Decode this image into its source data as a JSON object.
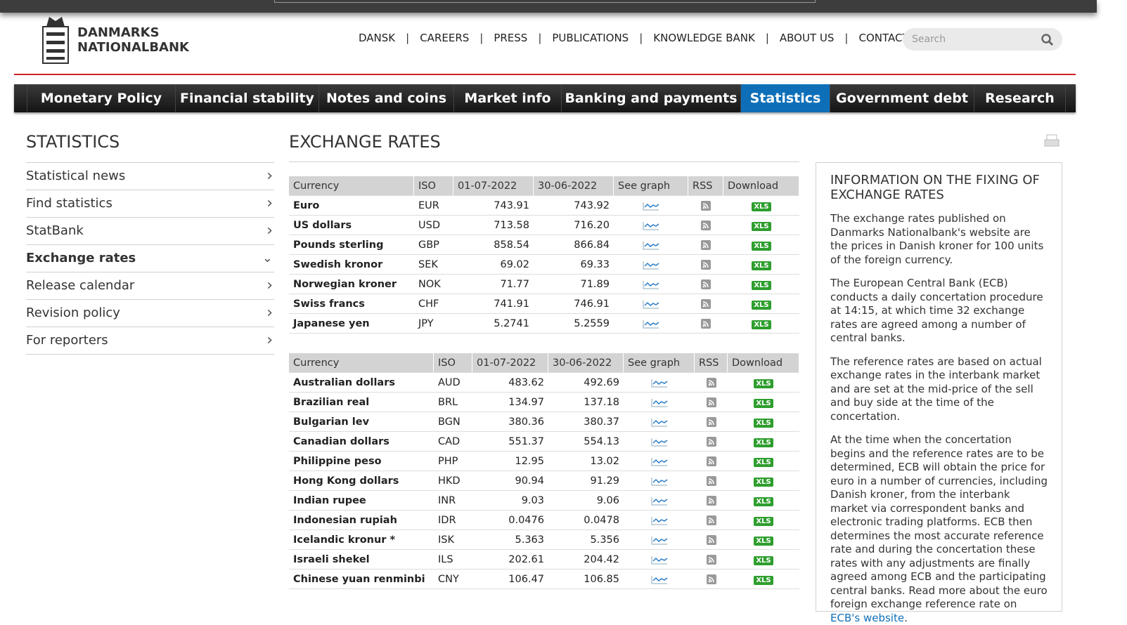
{
  "header": {
    "logo": [
      "DANMARKS",
      "NATIONALBANK"
    ],
    "top_links": [
      "DANSK",
      "CAREERS",
      "PRESS",
      "PUBLICATIONS",
      "KNOWLEDGE BANK",
      "ABOUT US",
      "CONTACT"
    ],
    "search_placeholder": "Search"
  },
  "main_nav": {
    "items": [
      "Monetary Policy",
      "Financial stability",
      "Notes and coins",
      "Market info",
      "Banking and payments",
      "Statistics",
      "Government debt",
      "Research"
    ],
    "active": 5
  },
  "sidebar": {
    "title": "STATISTICS",
    "items": [
      "Statistical news",
      "Find statistics",
      "StatBank",
      "Exchange rates",
      "Release calendar",
      "Revision policy",
      "For reporters"
    ],
    "active": 3
  },
  "page_title": "EXCHANGE RATES",
  "download_label": "XLS",
  "tables": [
    {
      "headers": [
        "Currency",
        "ISO",
        "01-07-2022",
        "30-06-2022",
        "See graph",
        "RSS",
        "Download"
      ],
      "rows": [
        [
          "Euro",
          "EUR",
          "743.91",
          "743.92"
        ],
        [
          "US dollars",
          "USD",
          "713.58",
          "716.20"
        ],
        [
          "Pounds sterling",
          "GBP",
          "858.54",
          "866.84"
        ],
        [
          "Swedish kronor",
          "SEK",
          "69.02",
          "69.33"
        ],
        [
          "Norwegian kroner",
          "NOK",
          "71.77",
          "71.89"
        ],
        [
          "Swiss francs",
          "CHF",
          "741.91",
          "746.91"
        ],
        [
          "Japanese yen",
          "JPY",
          "5.2741",
          "5.2559"
        ]
      ]
    },
    {
      "headers": [
        "Currency",
        "ISO",
        "01-07-2022",
        "30-06-2022",
        "See graph",
        "RSS",
        "Download"
      ],
      "rows": [
        [
          "Australian dollars",
          "AUD",
          "483.62",
          "492.69"
        ],
        [
          "Brazilian real",
          "BRL",
          "134.97",
          "137.18"
        ],
        [
          "Bulgarian lev",
          "BGN",
          "380.36",
          "380.37"
        ],
        [
          "Canadian dollars",
          "CAD",
          "551.37",
          "554.13"
        ],
        [
          "Philippine peso",
          "PHP",
          "12.95",
          "13.02"
        ],
        [
          "Hong Kong dollars",
          "HKD",
          "90.94",
          "91.29"
        ],
        [
          "Indian rupee",
          "INR",
          "9.03",
          "9.06"
        ],
        [
          "Indonesian rupiah",
          "IDR",
          "0.0476",
          "0.0478"
        ],
        [
          "Icelandic kronur *",
          "ISK",
          "5.363",
          "5.356"
        ],
        [
          "Israeli shekel",
          "ILS",
          "202.61",
          "204.42"
        ],
        [
          "Chinese yuan renminbi",
          "CNY",
          "106.47",
          "106.85"
        ]
      ]
    }
  ],
  "info": {
    "title": "INFORMATION ON THE FIXING OF EXCHANGE RATES",
    "paragraphs": [
      "The exchange rates published on Danmarks Nationalbank's website are the prices in Danish kroner for 100 units of the foreign currency.",
      "The European Central Bank (ECB) conducts a daily concertation procedure at 14:15, at which time 32 exchange rates are agreed among a number of central banks.",
      "The reference rates are based on actual exchange rates in the interbank market and are set at the mid-price of the sell and buy side at the time of the concertation."
    ],
    "last_paragraph": {
      "text": "At the time when the concertation begins and the reference rates are to be determined, ECB will obtain the price for euro in a number of currencies, including Danish kroner, from the interbank market via correspondent banks and electronic trading platforms. ECB then determines the most accurate reference rate and during the concertation these rates with any adjustments are finally agreed among ECB and the participating central banks. Read more about the euro foreign exchange reference rate on ",
      "link": "ECB's website",
      "tail": "."
    }
  }
}
